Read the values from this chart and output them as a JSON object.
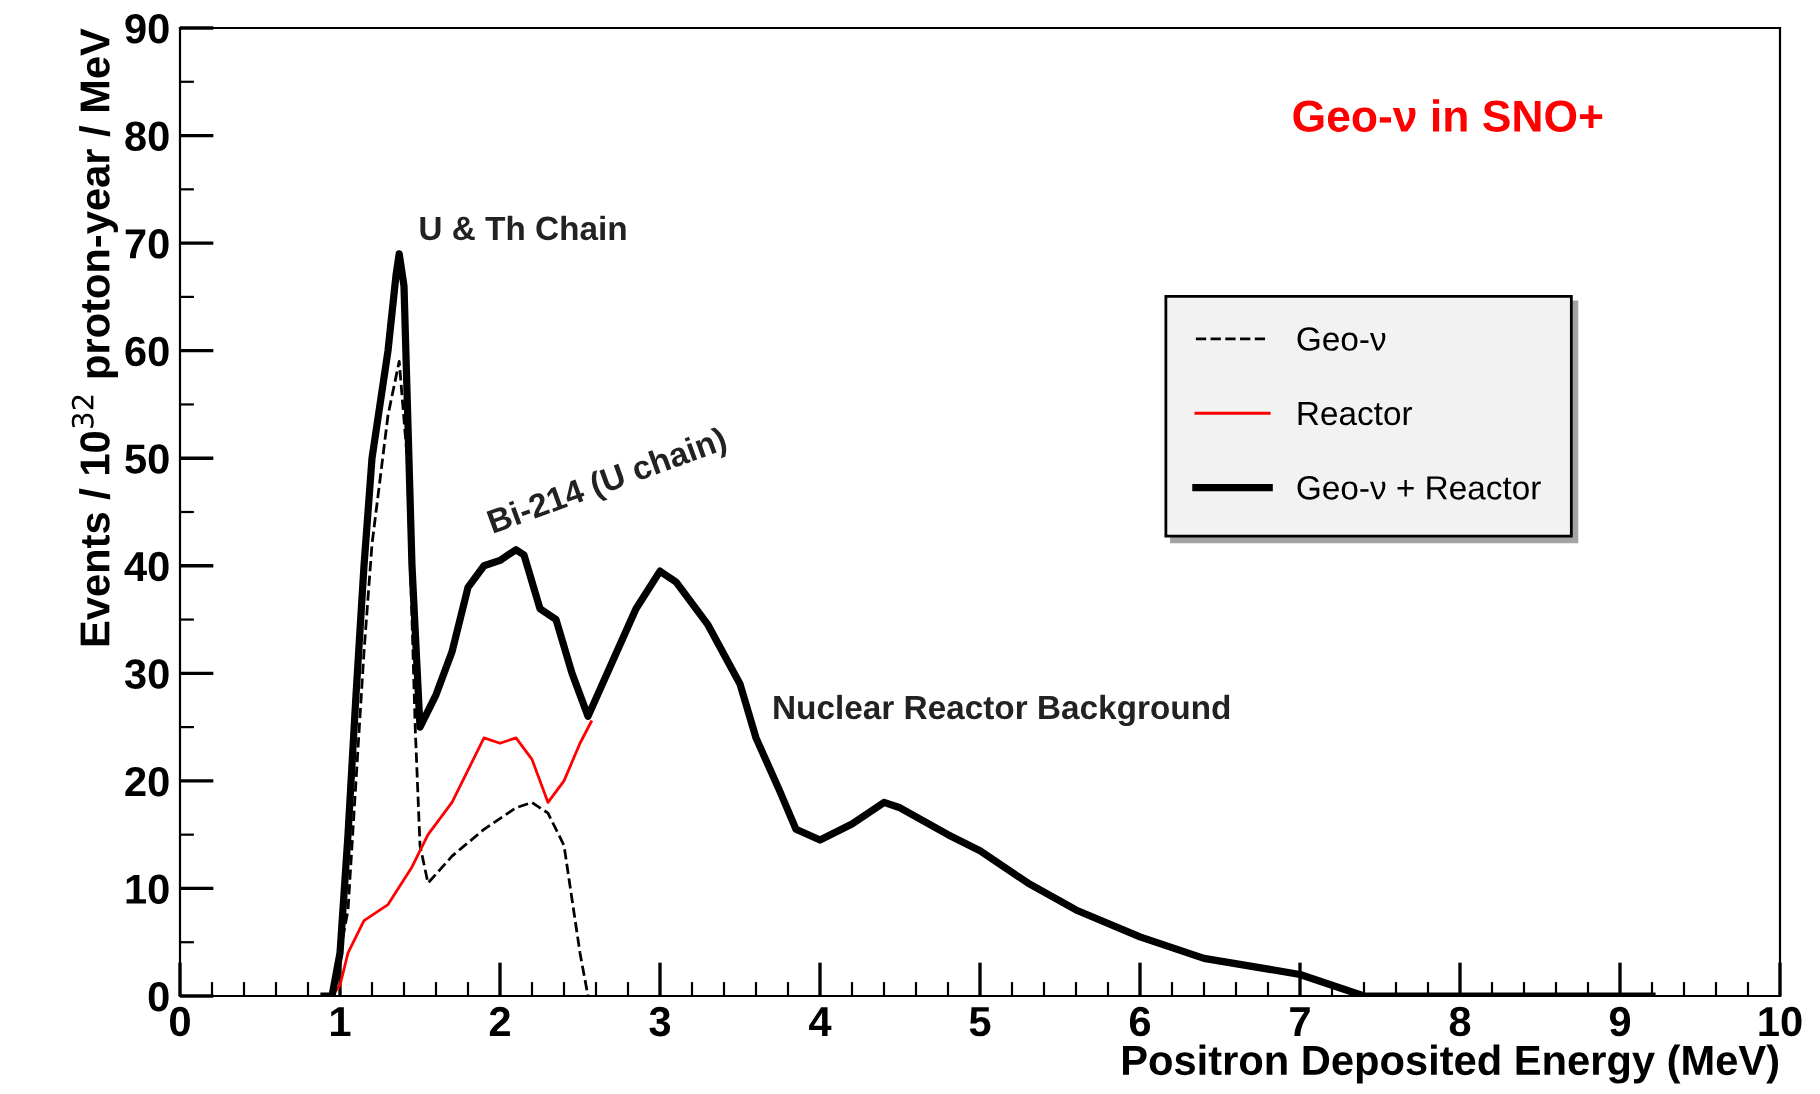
{
  "chart_data": {
    "type": "line",
    "title": "Geo-ν in SNO+",
    "xlabel": "Positron Deposited Energy (MeV)",
    "ylabel": "Events / 10$^{32}$ proton-year / MeV",
    "xlim": [
      0,
      10
    ],
    "ylim": [
      0,
      90
    ],
    "xticks": [
      0,
      1,
      2,
      3,
      4,
      5,
      6,
      7,
      8,
      9,
      10
    ],
    "yticks": [
      0,
      10,
      20,
      30,
      40,
      50,
      60,
      70,
      80,
      90
    ],
    "grid": false,
    "legend": "top right",
    "marker": "none",
    "annotations": [
      "U & Th Chain",
      "Bi-214 (U chain)",
      "Nuclear Reactor Background"
    ],
    "series": [
      {
        "name": "Geo-ν",
        "color": "#000000",
        "line_style": "dashed",
        "x": [
          0.95,
          1.05,
          1.1,
          1.15,
          1.2,
          1.3,
          1.37,
          1.42,
          1.47,
          1.5,
          1.55,
          1.7,
          1.9,
          2.1,
          2.2,
          2.3,
          2.4,
          2.45,
          2.5,
          2.55
        ],
        "values": [
          0,
          8,
          20,
          32,
          42,
          54,
          59,
          50,
          25,
          14,
          10.5,
          13,
          15.5,
          17.5,
          18,
          17,
          14,
          9,
          4,
          0
        ]
      },
      {
        "name": "Reactor",
        "color": "#ff0000",
        "line_style": "solid",
        "x": [
          0.95,
          1.0,
          1.05,
          1.15,
          1.3,
          1.45,
          1.55,
          1.7,
          1.8,
          1.9,
          2.0,
          2.1,
          2.2,
          2.3,
          2.4,
          2.5,
          2.57
        ],
        "values": [
          0,
          1,
          4,
          7,
          8.5,
          12,
          15,
          18,
          21,
          24,
          23.5,
          24,
          22,
          18,
          20,
          23.5,
          25.5
        ]
      },
      {
        "name": "Geo-ν + Reactor",
        "color": "#000000",
        "line_style": "solid",
        "x": [
          0.9,
          0.95,
          1.0,
          1.05,
          1.1,
          1.15,
          1.2,
          1.3,
          1.35,
          1.37,
          1.4,
          1.45,
          1.5,
          1.6,
          1.7,
          1.8,
          1.9,
          2.0,
          2.1,
          2.15,
          2.25,
          2.35,
          2.45,
          2.55,
          2.7,
          2.85,
          3.0,
          3.1,
          3.3,
          3.5,
          3.6,
          3.75,
          3.85,
          4.0,
          4.2,
          4.4,
          4.5,
          4.8,
          5.0,
          5.3,
          5.6,
          6.0,
          6.4,
          7.0,
          7.2,
          7.4,
          9.2
        ],
        "values": [
          0,
          0,
          4,
          15,
          28,
          40,
          50,
          60,
          67,
          69,
          66,
          40,
          25,
          28,
          32,
          38,
          40,
          40.5,
          41.5,
          41,
          36,
          35,
          30,
          26,
          31,
          36,
          39.5,
          38.5,
          34.5,
          29,
          24,
          19,
          15.5,
          14.5,
          16,
          18,
          17.5,
          15,
          13.5,
          10.5,
          8,
          5.5,
          3.5,
          2,
          1,
          0,
          0
        ]
      }
    ]
  }
}
